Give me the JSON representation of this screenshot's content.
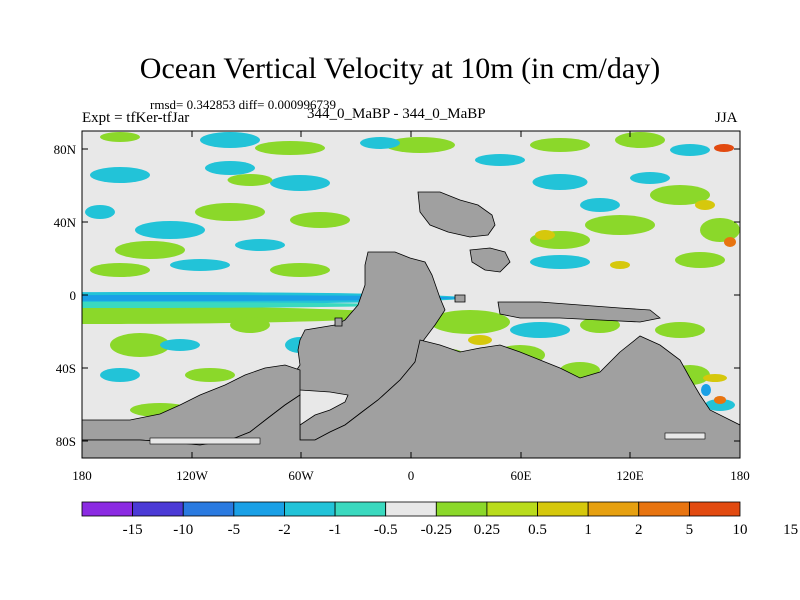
{
  "title": "Ocean Vertical Velocity at 10m (in cm/day)",
  "stats": "rmsd= 0.342853 diff= 0.000996739",
  "experiment": "Expt = tfKer-tfJar",
  "center_label": "344_0_MaBP - 344_0_MaBP",
  "season": "JJA",
  "lat_ticks": [
    "80N",
    "40N",
    "0",
    "40S",
    "80S"
  ],
  "lon_ticks": [
    "180",
    "120W",
    "60W",
    "0",
    "60E",
    "120E",
    "180"
  ],
  "colorbar": {
    "colors": [
      "#8b2be2",
      "#4b3ad6",
      "#2a7ae0",
      "#1aa0e6",
      "#22c3d8",
      "#3ad9bf",
      "#e8e8e8",
      "#8bd82a",
      "#b9dc1c",
      "#d6c80c",
      "#e6a010",
      "#e87410",
      "#e24a10"
    ],
    "labels": [
      "-15",
      "-10",
      "-5",
      "-2",
      "-1",
      "-0.5",
      "-0.25",
      "0.25",
      "0.5",
      "1",
      "2",
      "5",
      "10",
      "15"
    ]
  },
  "colors": {
    "background": "#e8e8e8",
    "land": "#a0a0a0",
    "green": "#8bd82a",
    "cyan": "#22c3d8",
    "teal": "#3ad9bf",
    "blue": "#1aa0e6",
    "yellow": "#d6c80c",
    "orange": "#e87410",
    "red": "#e24a10"
  }
}
